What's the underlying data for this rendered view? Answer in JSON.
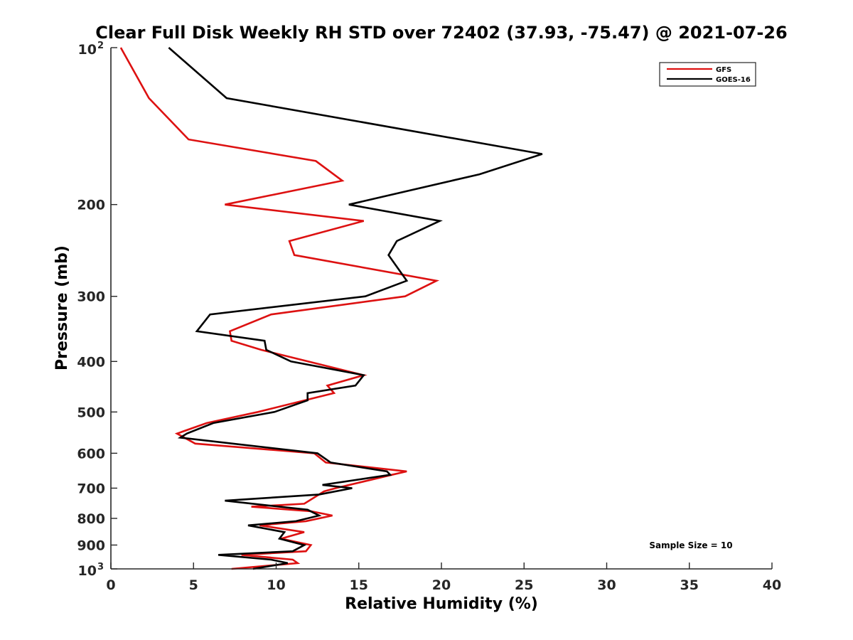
{
  "chart_data": {
    "type": "line",
    "title": "Clear Full Disk Weekly RH STD over 72402 (37.93, -75.47) @ 2021-07-26",
    "xlabel": "Relative Humidity (%)",
    "ylabel": "Pressure (mb)",
    "xlim": [
      0,
      40
    ],
    "ylim": [
      100,
      1000
    ],
    "yscale": "log",
    "yaxis_reversed": true,
    "grid": false,
    "legend_position": "top-right",
    "annotation": "Sample Size = 10",
    "x_ticks": [
      0,
      5,
      10,
      15,
      20,
      25,
      30,
      35,
      40
    ],
    "x_tick_labels": [
      "0",
      "5",
      "10",
      "15",
      "20",
      "25",
      "30",
      "35",
      "40"
    ],
    "y_ticks": [
      {
        "value": 100,
        "label": "10",
        "sup": "2"
      },
      {
        "value": 200,
        "label": "200",
        "sup": ""
      },
      {
        "value": 300,
        "label": "300",
        "sup": ""
      },
      {
        "value": 400,
        "label": "400",
        "sup": ""
      },
      {
        "value": 500,
        "label": "500",
        "sup": ""
      },
      {
        "value": 600,
        "label": "600",
        "sup": ""
      },
      {
        "value": 700,
        "label": "700",
        "sup": ""
      },
      {
        "value": 800,
        "label": "800",
        "sup": ""
      },
      {
        "value": 900,
        "label": "900",
        "sup": ""
      },
      {
        "value": 1000,
        "label": "10",
        "sup": "3"
      }
    ],
    "series": [
      {
        "name": "GFS",
        "color": "#dd1111",
        "points": [
          [
            0.6,
            100
          ],
          [
            2.3,
            125
          ],
          [
            4.7,
            150
          ],
          [
            12.4,
            165
          ],
          [
            14.0,
            180
          ],
          [
            6.9,
            200
          ],
          [
            15.3,
            215
          ],
          [
            10.8,
            235
          ],
          [
            11.1,
            250
          ],
          [
            19.7,
            280
          ],
          [
            17.8,
            300
          ],
          [
            9.7,
            325
          ],
          [
            7.2,
            350
          ],
          [
            7.3,
            365
          ],
          [
            9.1,
            380
          ],
          [
            15.3,
            425
          ],
          [
            13.1,
            445
          ],
          [
            13.5,
            460
          ],
          [
            8.9,
            500
          ],
          [
            5.8,
            525
          ],
          [
            4.0,
            550
          ],
          [
            5.1,
            575
          ],
          [
            12.3,
            600
          ],
          [
            13.0,
            625
          ],
          [
            17.9,
            650
          ],
          [
            17.0,
            660
          ],
          [
            13.6,
            700
          ],
          [
            12.9,
            710
          ],
          [
            11.7,
            750
          ],
          [
            8.5,
            760
          ],
          [
            12.1,
            775
          ],
          [
            13.4,
            790
          ],
          [
            11.8,
            810
          ],
          [
            9.0,
            825
          ],
          [
            11.7,
            850
          ],
          [
            10.3,
            875
          ],
          [
            12.1,
            900
          ],
          [
            11.8,
            925
          ],
          [
            7.9,
            940
          ],
          [
            11.0,
            960
          ],
          [
            11.3,
            975
          ],
          [
            7.3,
            1000
          ]
        ]
      },
      {
        "name": "GOES-16",
        "color": "#000000",
        "points": [
          [
            3.5,
            100
          ],
          [
            7.0,
            125
          ],
          [
            26.1,
            160
          ],
          [
            22.3,
            175
          ],
          [
            14.4,
            200
          ],
          [
            19.9,
            215
          ],
          [
            17.3,
            235
          ],
          [
            16.8,
            250
          ],
          [
            17.9,
            280
          ],
          [
            15.4,
            300
          ],
          [
            6.0,
            325
          ],
          [
            5.2,
            350
          ],
          [
            9.3,
            365
          ],
          [
            9.4,
            380
          ],
          [
            10.9,
            400
          ],
          [
            15.3,
            425
          ],
          [
            14.8,
            445
          ],
          [
            11.9,
            460
          ],
          [
            11.9,
            475
          ],
          [
            9.9,
            500
          ],
          [
            6.2,
            525
          ],
          [
            4.6,
            550
          ],
          [
            4.2,
            560
          ],
          [
            12.5,
            600
          ],
          [
            13.3,
            625
          ],
          [
            16.7,
            650
          ],
          [
            16.9,
            660
          ],
          [
            12.8,
            690
          ],
          [
            14.6,
            700
          ],
          [
            12.6,
            720
          ],
          [
            6.9,
            740
          ],
          [
            11.9,
            770
          ],
          [
            12.6,
            790
          ],
          [
            11.2,
            810
          ],
          [
            8.3,
            825
          ],
          [
            10.5,
            850
          ],
          [
            10.2,
            875
          ],
          [
            11.7,
            900
          ],
          [
            11.0,
            925
          ],
          [
            6.5,
            940
          ],
          [
            9.7,
            960
          ],
          [
            10.7,
            975
          ],
          [
            8.6,
            1000
          ]
        ]
      }
    ]
  }
}
